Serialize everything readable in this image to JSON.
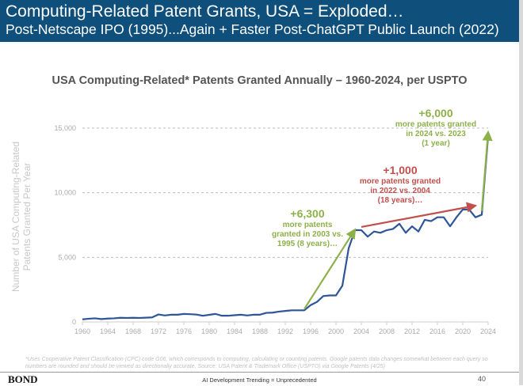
{
  "header": {
    "title": "Computing-Related Patent Grants, USA = Exploded…",
    "subtitle": "Post-Netscape IPO (1995)...Again + Faster Post-ChatGPT Public Launch (2022)",
    "color": "#0e4f7b"
  },
  "chart_data": {
    "type": "line",
    "title": "USA Computing-Related* Patents Granted Annually – 1960-2024, per USPTO",
    "ylabel": "Number of USA Computing-Related Patents Granted Per Year",
    "xlabel": "",
    "ylim": [
      0,
      15000
    ],
    "yticks": [
      "0",
      "5,000",
      "10,000",
      "15,000"
    ],
    "xticks": [
      "1960",
      "1964",
      "1968",
      "1972",
      "1976",
      "1980",
      "1984",
      "1988",
      "1992",
      "1996",
      "2000",
      "2004",
      "2008",
      "2012",
      "2016",
      "2020",
      "2024"
    ],
    "grid": "horizontal dashed",
    "x": [
      1960,
      1961,
      1962,
      1963,
      1964,
      1965,
      1966,
      1967,
      1968,
      1969,
      1970,
      1971,
      1972,
      1973,
      1974,
      1975,
      1976,
      1977,
      1978,
      1979,
      1980,
      1981,
      1982,
      1983,
      1984,
      1985,
      1986,
      1987,
      1988,
      1989,
      1990,
      1991,
      1992,
      1993,
      1994,
      1995,
      1996,
      1997,
      1998,
      1999,
      2000,
      2001,
      2002,
      2003,
      2004,
      2005,
      2006,
      2007,
      2008,
      2009,
      2010,
      2011,
      2012,
      2013,
      2014,
      2015,
      2016,
      2017,
      2018,
      2019,
      2020,
      2021,
      2022,
      2023,
      2024
    ],
    "series": [
      {
        "color": "#2e5597",
        "values": [
          200,
          250,
          280,
          220,
          260,
          280,
          320,
          310,
          320,
          310,
          330,
          350,
          580,
          500,
          560,
          560,
          620,
          600,
          570,
          480,
          550,
          620,
          480,
          480,
          520,
          560,
          500,
          560,
          560,
          700,
          720,
          800,
          850,
          900,
          900,
          900,
          1300,
          1550,
          2000,
          2050,
          2050,
          2800,
          5700,
          7100,
          7100,
          6600,
          7000,
          6900,
          7100,
          7200,
          7600,
          6900,
          7400,
          7000,
          7900,
          7800,
          8100,
          8100,
          7400,
          8100,
          8700,
          8700,
          8100,
          8300,
          14400
        ]
      }
    ],
    "arrows": [
      {
        "color": "#8db14a",
        "from": [
          1995,
          1000
        ],
        "to": [
          2003,
          7150
        ]
      },
      {
        "color": "#c0504d",
        "from": [
          2004,
          7350
        ],
        "to": [
          2022,
          9000
        ]
      },
      {
        "color": "#8db14a",
        "from": [
          2023,
          8600
        ],
        "to": [
          2024,
          14700
        ]
      }
    ],
    "annotations": [
      {
        "big": "+6,300",
        "text": [
          "more patents",
          "granted in 2003 vs.",
          "1995 (8 years)…"
        ],
        "color": "#8db14a"
      },
      {
        "big": "+1,000",
        "text": [
          "more patents granted",
          "in 2022 vs. 2004",
          "(18 years)…"
        ],
        "color": "#c0504d"
      },
      {
        "big": "+6,000",
        "text": [
          "more patents granted",
          "in 2024 vs. 2023",
          "(1 year)"
        ],
        "color": "#8db14a"
      }
    ]
  },
  "footnote": "*Uses Cooperative Patent Classification (CPC) code G06, which corresponds to computing, calculating or counting patents. Google patents data changes somewhat between each query so numbers are rounded and should be viewed as directionally accurate. Source: USA Patent & Trademark Office (USPTO) via Google Patents (4/25)",
  "footer": {
    "logo": "BOND",
    "center": "AI Development Trending = Unprecedented",
    "page": "40"
  }
}
